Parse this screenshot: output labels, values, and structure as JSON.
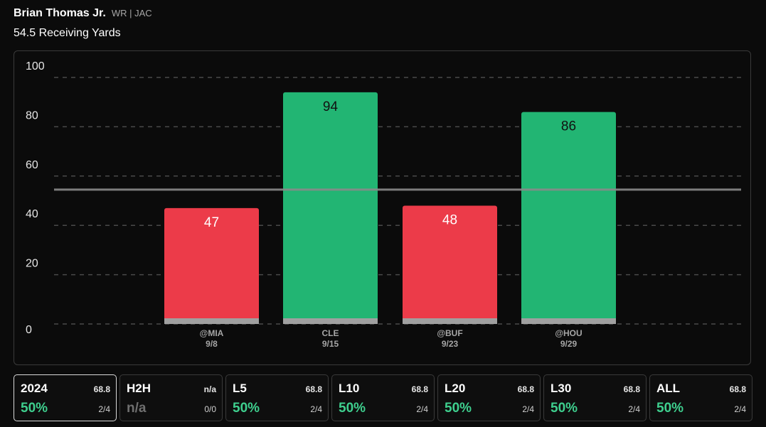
{
  "player": {
    "name": "Brian Thomas Jr.",
    "position_team": "WR | JAC"
  },
  "prop": {
    "label": "54.5 Receiving Yards",
    "line": 54.5
  },
  "colors": {
    "over": "#22b573",
    "under": "#ec3b49",
    "line": "#8a8a8a",
    "base": "#a0a0a0",
    "grid": "#4a4a4a"
  },
  "chart_data": {
    "type": "bar",
    "categories": [
      "@MIA",
      "CLE",
      "@BUF",
      "@HOU"
    ],
    "dates": [
      "9/8",
      "9/15",
      "9/23",
      "9/29"
    ],
    "values": [
      47,
      94,
      48,
      86
    ],
    "yticks": [
      0,
      20,
      40,
      60,
      80,
      100
    ],
    "ylim": [
      0,
      100
    ],
    "line": 54.5
  },
  "stats": [
    {
      "label": "2024",
      "avg": "68.8",
      "pct": "50%",
      "frac": "2/4",
      "active": true
    },
    {
      "label": "H2H",
      "avg": "n/a",
      "pct": "n/a",
      "frac": "0/0",
      "active": false,
      "na": true
    },
    {
      "label": "L5",
      "avg": "68.8",
      "pct": "50%",
      "frac": "2/4",
      "active": false
    },
    {
      "label": "L10",
      "avg": "68.8",
      "pct": "50%",
      "frac": "2/4",
      "active": false
    },
    {
      "label": "L20",
      "avg": "68.8",
      "pct": "50%",
      "frac": "2/4",
      "active": false
    },
    {
      "label": "L30",
      "avg": "68.8",
      "pct": "50%",
      "frac": "2/4",
      "active": false
    },
    {
      "label": "ALL",
      "avg": "68.8",
      "pct": "50%",
      "frac": "2/4",
      "active": false
    }
  ]
}
